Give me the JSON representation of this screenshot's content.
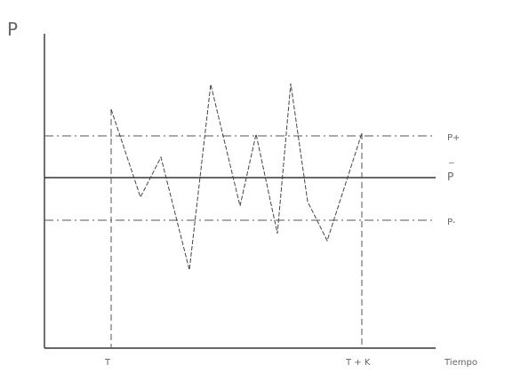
{
  "labels": {
    "y_axis": "P",
    "x_axis": "Tiempo",
    "upper_line": "P+",
    "mean_line": "P",
    "mean_bar": "_",
    "lower_line": "P-",
    "t_start": "T",
    "t_end": "T + K"
  },
  "colors": {
    "ink": "#333333",
    "dashed": "#555555",
    "text": "#666666"
  }
}
